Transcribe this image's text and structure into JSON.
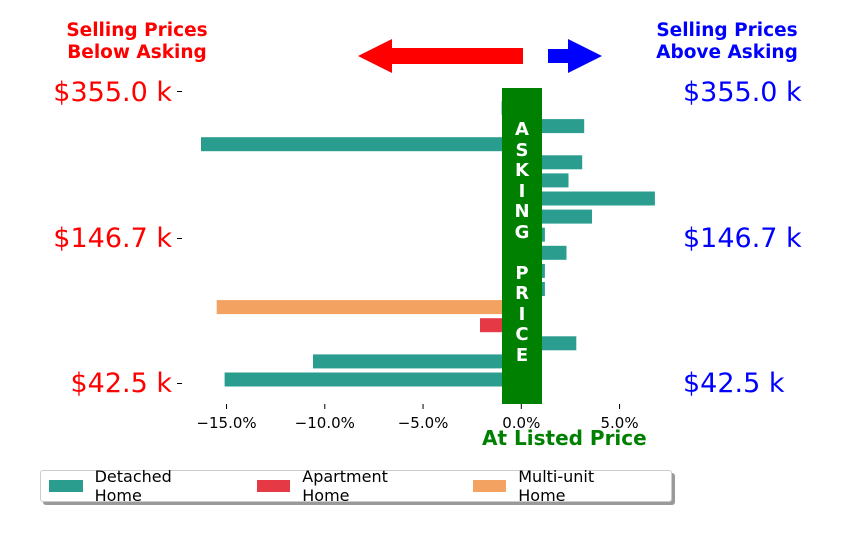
{
  "headers": {
    "left_line1": "Selling Prices",
    "left_line2": "Below Asking",
    "right_line1": "Selling Prices",
    "right_line2": "Above Asking"
  },
  "price_labels": {
    "top": "$355.0 k",
    "middle": "$146.7 k",
    "bottom": "$42.5 k"
  },
  "center_band": {
    "word1": [
      "A",
      "S",
      "K",
      "I",
      "N",
      "G"
    ],
    "word2": [
      "P",
      "R",
      "I",
      "C",
      "E"
    ],
    "color": "#008000"
  },
  "bottom_label": "At Listed Price",
  "colors": {
    "detached": "#2a9d8f",
    "apartment": "#e63946",
    "multi": "#f4a261",
    "below": "#ff0000",
    "above": "#0000ff"
  },
  "legend": [
    {
      "label": "Detached Home",
      "key": "detached"
    },
    {
      "label": "Apartment Home",
      "key": "apartment"
    },
    {
      "label": "Multi-unit Home",
      "key": "multi"
    }
  ],
  "chart_data": {
    "type": "bar",
    "orientation": "horizontal",
    "title": "",
    "xlabel": "At Listed Price",
    "ylabel": "",
    "xlim": [
      -18.5,
      7.6
    ],
    "xticks": [
      -15,
      -10,
      -5,
      0,
      5
    ],
    "xtick_labels": [
      "−15.0%",
      "−10.0%",
      "−5.0%",
      "0.0%",
      "5.0%"
    ],
    "ytick_labels_left": [
      "$355.0 k",
      "$146.7 k",
      "$42.5 k"
    ],
    "ytick_labels_right": [
      "$355.0 k",
      "$146.7 k",
      "$42.5 k"
    ],
    "legend_position": "bottom-left",
    "grid": false,
    "bars": [
      {
        "value": -1.0,
        "type": "detached"
      },
      {
        "value": 3.2,
        "type": "detached"
      },
      {
        "value": -16.3,
        "type": "detached"
      },
      {
        "value": 3.1,
        "type": "detached"
      },
      {
        "value": 2.4,
        "type": "detached"
      },
      {
        "value": 6.8,
        "type": "detached"
      },
      {
        "value": 3.6,
        "type": "detached"
      },
      {
        "value": 1.2,
        "type": "detached"
      },
      {
        "value": 2.3,
        "type": "detached"
      },
      {
        "value": 1.2,
        "type": "detached"
      },
      {
        "value": 1.2,
        "type": "detached"
      },
      {
        "value": -15.5,
        "type": "multi"
      },
      {
        "value": -2.1,
        "type": "apartment"
      },
      {
        "value": 2.8,
        "type": "detached"
      },
      {
        "value": -10.6,
        "type": "detached"
      },
      {
        "value": -15.1,
        "type": "detached"
      }
    ]
  }
}
